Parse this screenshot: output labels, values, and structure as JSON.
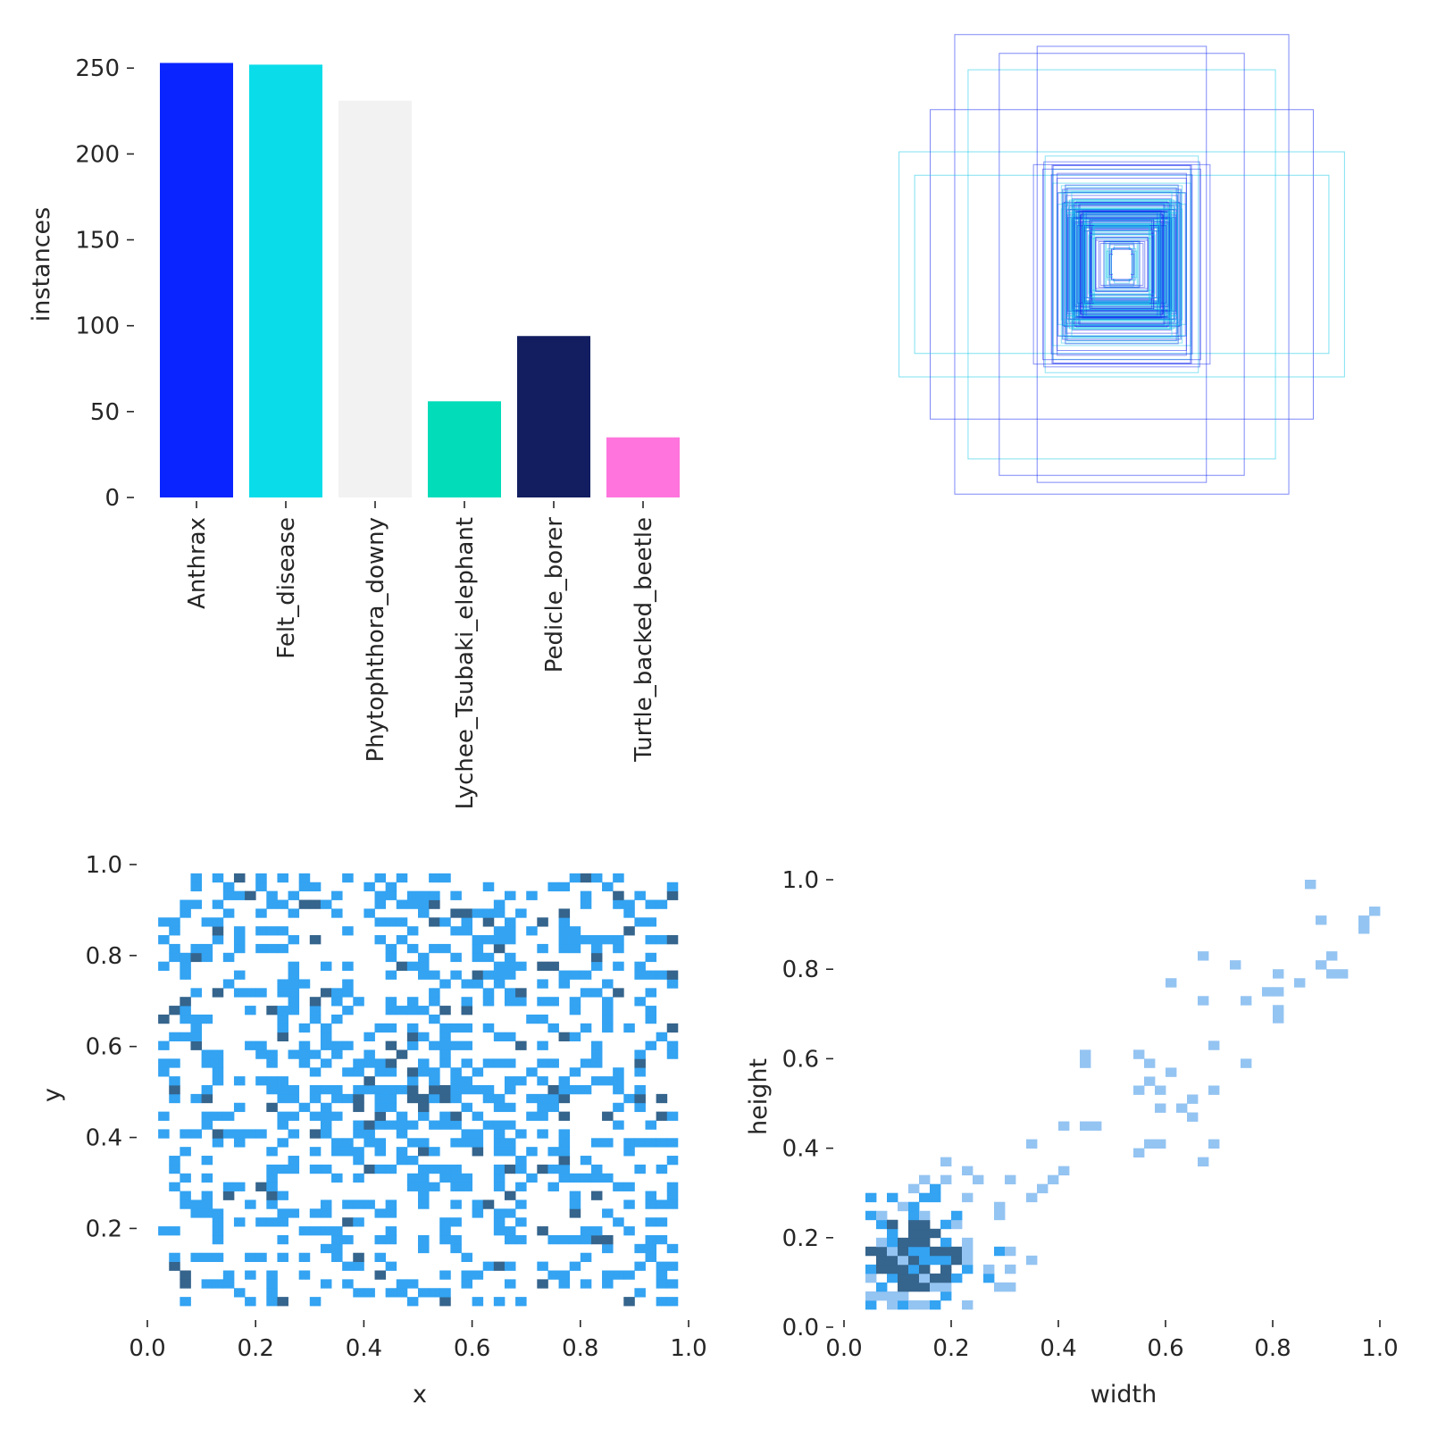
{
  "chart_data": [
    {
      "id": "class-instances",
      "type": "bar",
      "categories": [
        "Anthrax",
        "Felt_disease",
        "Phytophthora_downy",
        "Lychee_Tsubaki_elephant",
        "Pedicle_borer",
        "Turtle_backed_beetle"
      ],
      "values": [
        253,
        252,
        231,
        56,
        94,
        35
      ],
      "colors": [
        "#0a24ff",
        "#0adde9",
        "#f2f2f2",
        "#02dcb9",
        "#121e60",
        "#ff75dd"
      ],
      "ylabel": "instances",
      "xlabel": "",
      "ylim": [
        0,
        260
      ],
      "yticks": [
        0,
        50,
        100,
        150,
        200,
        250
      ]
    },
    {
      "id": "label-boxes",
      "type": "box-overlay",
      "description_colors": [
        "#1428f0",
        "#16c8e8"
      ],
      "grid": false,
      "axes_visible": false
    },
    {
      "id": "xy-histogram",
      "type": "heatmap",
      "xlabel": "x",
      "ylabel": "y",
      "xlim": [
        0.0,
        1.0
      ],
      "ylim": [
        0.03,
        1.0
      ],
      "xticks": [
        "0.0",
        "0.2",
        "0.4",
        "0.6",
        "0.8",
        "1.0"
      ],
      "yticks": [
        "0.2",
        "0.4",
        "0.6",
        "0.8",
        "1.0"
      ],
      "light_color": "#33a3f2",
      "dark_color": "#35648c"
    },
    {
      "id": "wh-histogram",
      "type": "heatmap",
      "xlabel": "width",
      "ylabel": "height",
      "xlim": [
        0.0,
        1.0
      ],
      "ylim": [
        0.0,
        1.0
      ],
      "xticks": [
        "0.0",
        "0.2",
        "0.4",
        "0.6",
        "0.8",
        "1.0"
      ],
      "yticks": [
        "0.0",
        "0.2",
        "0.4",
        "0.6",
        "0.8",
        "1.0"
      ],
      "light_color": "#94c4f2",
      "mid_color": "#33a3f2",
      "dark_color": "#35648c"
    }
  ]
}
